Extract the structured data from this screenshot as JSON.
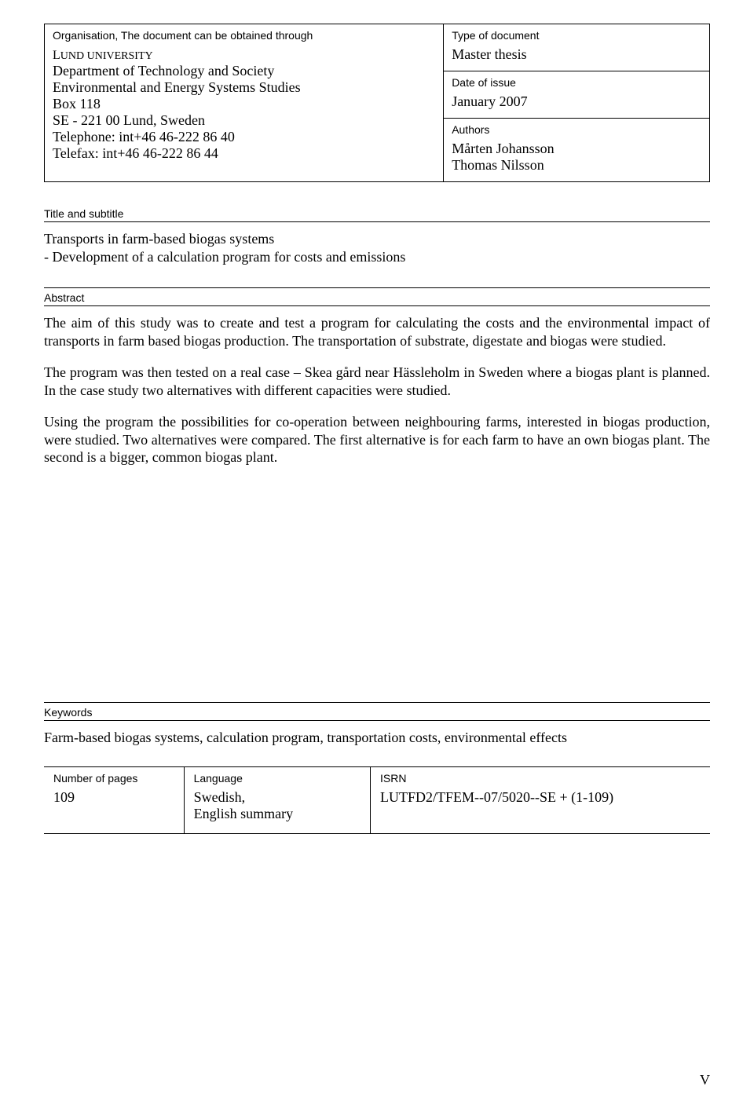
{
  "header": {
    "org_label": "Organisation, The document can be obtained through",
    "org_name": "LUND UNIVERSITY",
    "org_dept": "Department of Technology and Society",
    "org_unit": "Environmental and Energy Systems Studies",
    "org_box": "Box 118",
    "org_city": "SE - 221 00 Lund, Sweden",
    "org_tel": "Telephone: int+46 46-222 86 40",
    "org_fax": "Telefax: int+46 46-222 86 44",
    "type_label": "Type of document",
    "type_value": "Master thesis",
    "date_label": "Date of issue",
    "date_value": "January 2007",
    "authors_label": "Authors",
    "author1": "Mårten Johansson",
    "author2": "Thomas Nilsson"
  },
  "title_section": {
    "label": "Title and subtitle",
    "line1": "Transports in farm-based biogas systems",
    "line2": "- Development of a calculation program for costs and emissions"
  },
  "abstract": {
    "label": "Abstract",
    "p1": "The aim of this study was to create and test a program for calculating the costs and the environmental impact of transports in farm based biogas production. The transportation of substrate, digestate and biogas were studied.",
    "p2": "The program was then tested on a real case – Skea gård near Hässleholm in Sweden where a biogas plant is planned. In the case study two alternatives with different capacities were studied.",
    "p3": "Using the program the possibilities for co-operation between neighbouring farms, interested in biogas production, were studied. Two alternatives were compared. The first alternative is for each farm to have an own biogas plant. The second is a bigger, common biogas plant."
  },
  "keywords": {
    "label": "Keywords",
    "value": "Farm-based biogas systems,  calculation program, transportation costs, environmental effects"
  },
  "footer": {
    "pages_label": "Number of pages",
    "pages_value": "109",
    "lang_label": "Language",
    "lang_value1": "Swedish,",
    "lang_value2": "English summary",
    "isrn_label": "ISRN",
    "isrn_value": "LUTFD2/TFEM--07/5020--SE + (1-109)"
  },
  "page_number": "V"
}
